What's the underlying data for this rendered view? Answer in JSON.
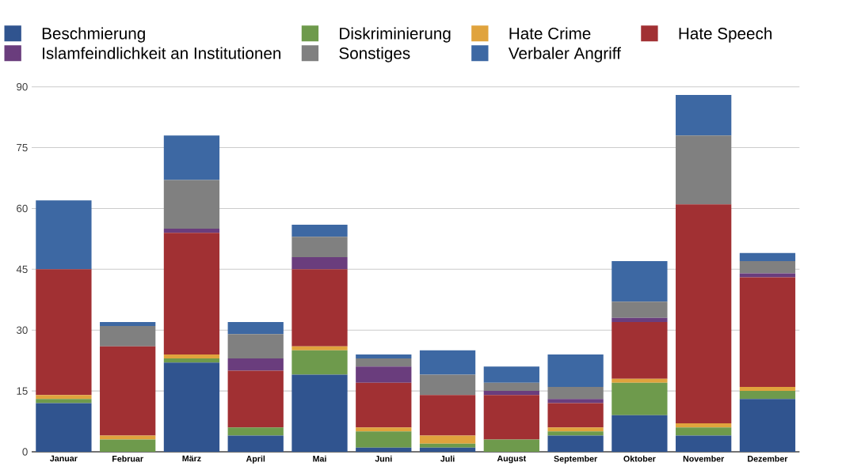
{
  "chart_data": {
    "type": "bar",
    "stacked": true,
    "categories": [
      "Januar",
      "Februar",
      "März",
      "April",
      "Mai",
      "Juni",
      "Juli",
      "August",
      "September",
      "Oktober",
      "November",
      "Dezember"
    ],
    "series": [
      {
        "name": "Beschmierung",
        "color": "#30548f",
        "values": [
          12,
          0,
          22,
          4,
          19,
          1,
          1,
          0,
          4,
          9,
          4,
          13
        ]
      },
      {
        "name": "Diskriminierung",
        "color": "#6e9a4c",
        "values": [
          1,
          3,
          1,
          2,
          6,
          4,
          1,
          3,
          1,
          8,
          2,
          2
        ]
      },
      {
        "name": "Hate Crime",
        "color": "#e0a33d",
        "values": [
          1,
          1,
          1,
          0,
          1,
          1,
          2,
          0,
          1,
          1,
          1,
          1
        ]
      },
      {
        "name": "Hate Speech",
        "color": "#a13033",
        "values": [
          31,
          22,
          30,
          14,
          19,
          11,
          10,
          11,
          6,
          14,
          54,
          27
        ]
      },
      {
        "name": "Islamfeindlichkeit an Institutionen",
        "color": "#6a3d7d",
        "values": [
          0,
          0,
          1,
          3,
          3,
          4,
          0,
          1,
          1,
          1,
          0,
          1
        ]
      },
      {
        "name": "Sonstiges",
        "color": "#808080",
        "values": [
          0,
          5,
          12,
          6,
          5,
          2,
          5,
          2,
          3,
          4,
          17,
          3
        ]
      },
      {
        "name": "Verbaler Angriff",
        "color": "#3d68a3",
        "values": [
          17,
          1,
          11,
          3,
          3,
          1,
          6,
          4,
          8,
          10,
          10,
          2
        ]
      }
    ],
    "ylim": [
      0,
      90
    ],
    "yticks": [
      0,
      15,
      30,
      45,
      60,
      75,
      90
    ],
    "grid": "y",
    "legend": "top"
  }
}
